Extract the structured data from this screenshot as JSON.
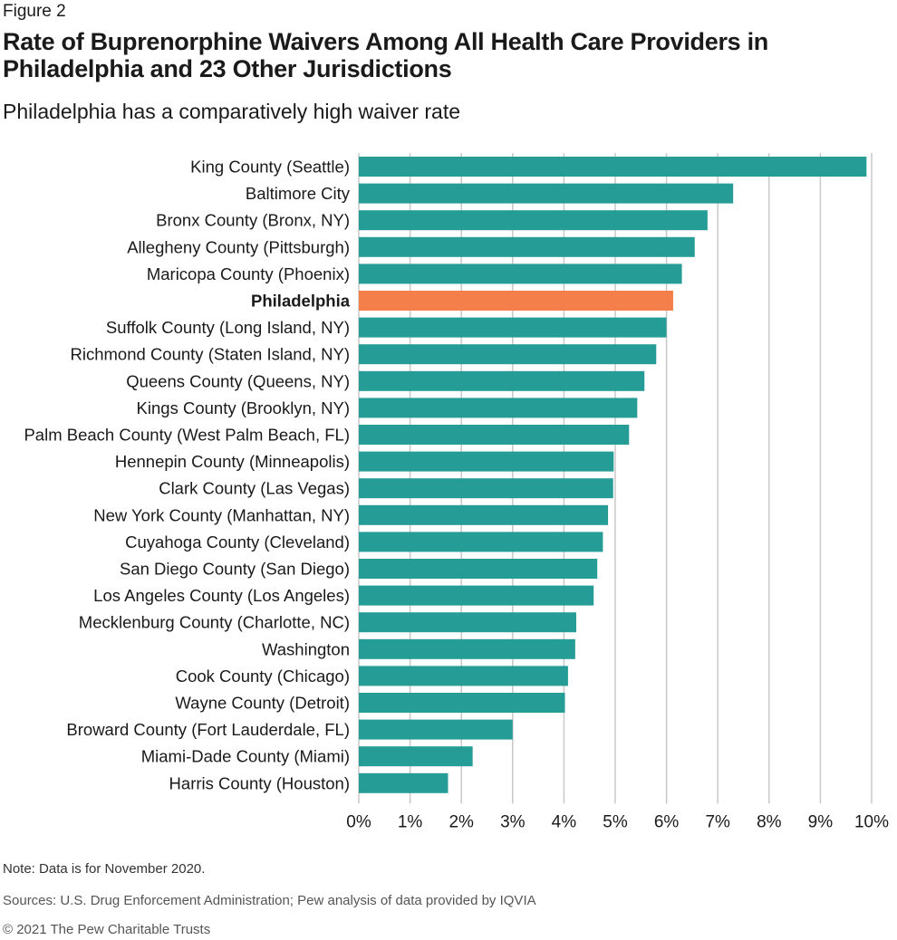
{
  "figure_label": "Figure 2",
  "chart_data": {
    "type": "bar",
    "orientation": "horizontal",
    "title": "Rate of Buprenorphine Waivers Among All Health Care Providers in Philadelphia and 23 Other Jurisdictions",
    "subtitle": "Philadelphia has a comparatively high waiver rate",
    "xlabel": "",
    "ylabel": "",
    "xlim": [
      0,
      10
    ],
    "grid": true,
    "x_ticks": [
      "0%",
      "1%",
      "2%",
      "3%",
      "4%",
      "5%",
      "6%",
      "7%",
      "8%",
      "9%",
      "10%"
    ],
    "highlight": "Philadelphia",
    "colors": {
      "default": "#269c97",
      "highlight": "#f47f4b"
    },
    "categories": [
      "King County (Seattle)",
      "Baltimore City",
      "Bronx County (Bronx, NY)",
      "Allegheny County (Pittsburgh)",
      "Maricopa County (Phoenix)",
      "Philadelphia",
      "Suffolk County (Long Island, NY)",
      "Richmond County (Staten Island, NY)",
      "Queens County (Queens, NY)",
      "Kings County (Brooklyn, NY)",
      "Palm Beach County (West Palm Beach, FL)",
      "Hennepin County (Minneapolis)",
      "Clark County (Las Vegas)",
      "New York County (Manhattan, NY)",
      "Cuyahoga County (Cleveland)",
      "San Diego County (San Diego)",
      "Los Angeles County (Los Angeles)",
      "Mecklenburg County (Charlotte, NC)",
      "Washington",
      "Cook County (Chicago)",
      "Wayne County (Detroit)",
      "Broward County (Fort Lauderdale, FL)",
      "Miami-Dade County (Miami)",
      "Harris County (Houston)"
    ],
    "values": [
      9.9,
      7.3,
      6.8,
      6.55,
      6.3,
      6.13,
      6.0,
      5.8,
      5.57,
      5.43,
      5.27,
      4.97,
      4.96,
      4.86,
      4.76,
      4.65,
      4.58,
      4.24,
      4.22,
      4.08,
      4.02,
      3.0,
      2.22,
      1.74
    ],
    "units": "%"
  },
  "footer": {
    "note": "Note: Data is for November 2020.",
    "sources": "Sources: U.S. Drug Enforcement Administration; Pew analysis of data provided by IQVIA",
    "copyright": "© 2021 The Pew Charitable Trusts"
  }
}
